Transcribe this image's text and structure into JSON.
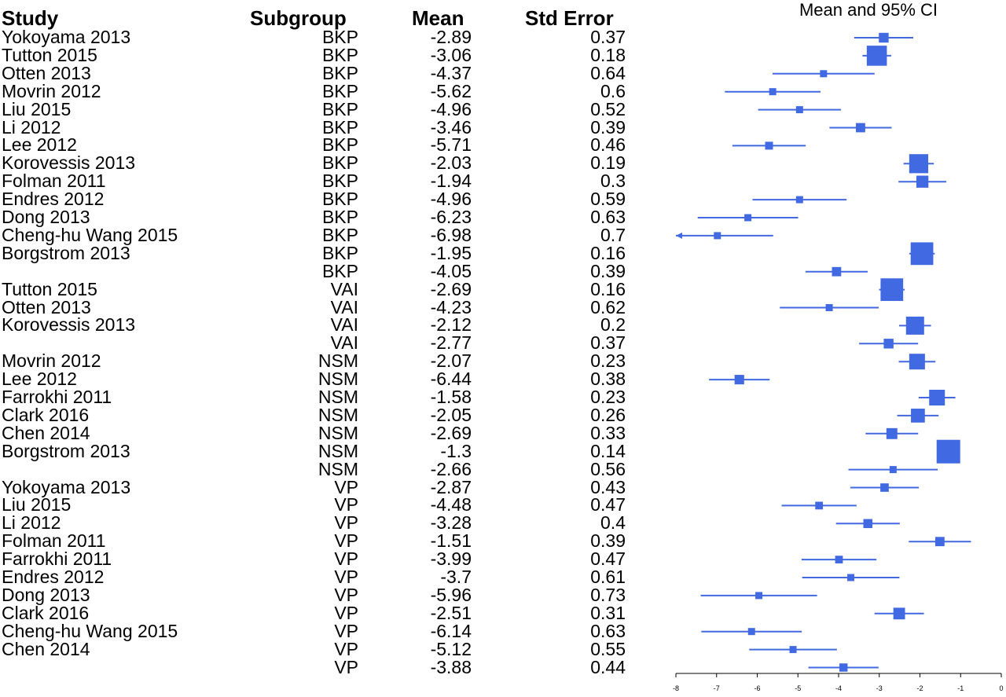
{
  "headers": {
    "study": "Study",
    "subgroup": "Subgroup",
    "mean": "Mean",
    "se": "Std Error",
    "ci": "Mean and 95% CI"
  },
  "chart_data": {
    "type": "forest",
    "x_ticks": [
      -8,
      -7,
      -6,
      -5,
      -4,
      -3,
      -2,
      -1,
      0
    ],
    "xlim": [
      -8,
      0
    ],
    "marker_color": "#4169e1",
    "rows": [
      {
        "study": "Yokoyama 2013",
        "subgroup": "BKP",
        "mean": -2.89,
        "se": 0.37
      },
      {
        "study": "Tutton 2015",
        "subgroup": "BKP",
        "mean": -3.06,
        "se": 0.18
      },
      {
        "study": "Otten 2013",
        "subgroup": "BKP",
        "mean": -4.37,
        "se": 0.64
      },
      {
        "study": "Movrin 2012",
        "subgroup": "BKP",
        "mean": -5.62,
        "se": 0.6
      },
      {
        "study": "Liu 2015",
        "subgroup": "BKP",
        "mean": -4.96,
        "se": 0.52
      },
      {
        "study": "Li 2012",
        "subgroup": "BKP",
        "mean": -3.46,
        "se": 0.39
      },
      {
        "study": "Lee 2012",
        "subgroup": "BKP",
        "mean": -5.71,
        "se": 0.46
      },
      {
        "study": "Korovessis 2013",
        "subgroup": "BKP",
        "mean": -2.03,
        "se": 0.19
      },
      {
        "study": "Folman 2011",
        "subgroup": "BKP",
        "mean": -1.94,
        "se": 0.3
      },
      {
        "study": "Endres 2012",
        "subgroup": "BKP",
        "mean": -4.96,
        "se": 0.59
      },
      {
        "study": "Dong 2013",
        "subgroup": "BKP",
        "mean": -6.23,
        "se": 0.63
      },
      {
        "study": "Cheng-hu Wang 2015",
        "subgroup": "BKP",
        "mean": -6.98,
        "se": 0.7
      },
      {
        "study": "Borgstrom 2013",
        "subgroup": "BKP",
        "mean": -1.95,
        "se": 0.16
      },
      {
        "study": "",
        "subgroup": "BKP",
        "mean": -4.05,
        "se": 0.39
      },
      {
        "study": "Tutton 2015",
        "subgroup": "VAI",
        "mean": -2.69,
        "se": 0.16
      },
      {
        "study": "Otten 2013",
        "subgroup": "VAI",
        "mean": -4.23,
        "se": 0.62
      },
      {
        "study": "Korovessis 2013",
        "subgroup": "VAI",
        "mean": -2.12,
        "se": 0.2
      },
      {
        "study": "",
        "subgroup": "VAI",
        "mean": -2.77,
        "se": 0.37
      },
      {
        "study": "Movrin 2012",
        "subgroup": "NSM",
        "mean": -2.07,
        "se": 0.23
      },
      {
        "study": "Lee 2012",
        "subgroup": "NSM",
        "mean": -6.44,
        "se": 0.38
      },
      {
        "study": "Farrokhi 2011",
        "subgroup": "NSM",
        "mean": -1.58,
        "se": 0.23
      },
      {
        "study": "Clark 2016",
        "subgroup": "NSM",
        "mean": -2.05,
        "se": 0.26
      },
      {
        "study": "Chen 2014",
        "subgroup": "NSM",
        "mean": -2.69,
        "se": 0.33
      },
      {
        "study": "Borgstrom 2013",
        "subgroup": "NSM",
        "mean": -1.3,
        "se": 0.14
      },
      {
        "study": "",
        "subgroup": "NSM",
        "mean": -2.66,
        "se": 0.56
      },
      {
        "study": "Yokoyama 2013",
        "subgroup": "VP",
        "mean": -2.87,
        "se": 0.43
      },
      {
        "study": "Liu 2015",
        "subgroup": "VP",
        "mean": -4.48,
        "se": 0.47
      },
      {
        "study": "Li 2012",
        "subgroup": "VP",
        "mean": -3.28,
        "se": 0.4
      },
      {
        "study": "Folman 2011",
        "subgroup": "VP",
        "mean": -1.51,
        "se": 0.39
      },
      {
        "study": "Farrokhi 2011",
        "subgroup": "VP",
        "mean": -3.99,
        "se": 0.47
      },
      {
        "study": "Endres 2012",
        "subgroup": "VP",
        "mean": -3.7,
        "se": 0.61
      },
      {
        "study": "Dong 2013",
        "subgroup": "VP",
        "mean": -5.96,
        "se": 0.73
      },
      {
        "study": "Clark 2016",
        "subgroup": "VP",
        "mean": -2.51,
        "se": 0.31
      },
      {
        "study": "Cheng-hu Wang 2015",
        "subgroup": "VP",
        "mean": -6.14,
        "se": 0.63
      },
      {
        "study": "Chen 2014",
        "subgroup": "VP",
        "mean": -5.12,
        "se": 0.55
      },
      {
        "study": "",
        "subgroup": "VP",
        "mean": -3.88,
        "se": 0.44
      }
    ]
  }
}
